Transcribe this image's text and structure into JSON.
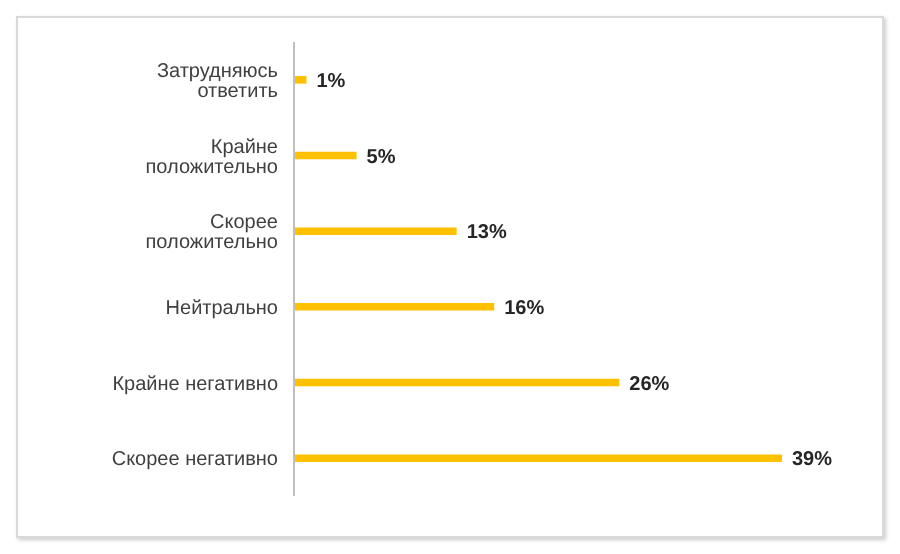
{
  "chart_data": {
    "type": "bar",
    "orientation": "horizontal",
    "categories": [
      "Затрудняюсь ответить",
      "Крайне положительно",
      "Скорее положительно",
      "Нейтрально",
      "Крайне негативно",
      "Скорее негативно"
    ],
    "values": [
      1,
      5,
      13,
      16,
      26,
      39
    ],
    "value_labels": [
      "1%",
      "5%",
      "13%",
      "16%",
      "26%",
      "39%"
    ],
    "color": "#ffc000",
    "tick_labels": "y"
  }
}
